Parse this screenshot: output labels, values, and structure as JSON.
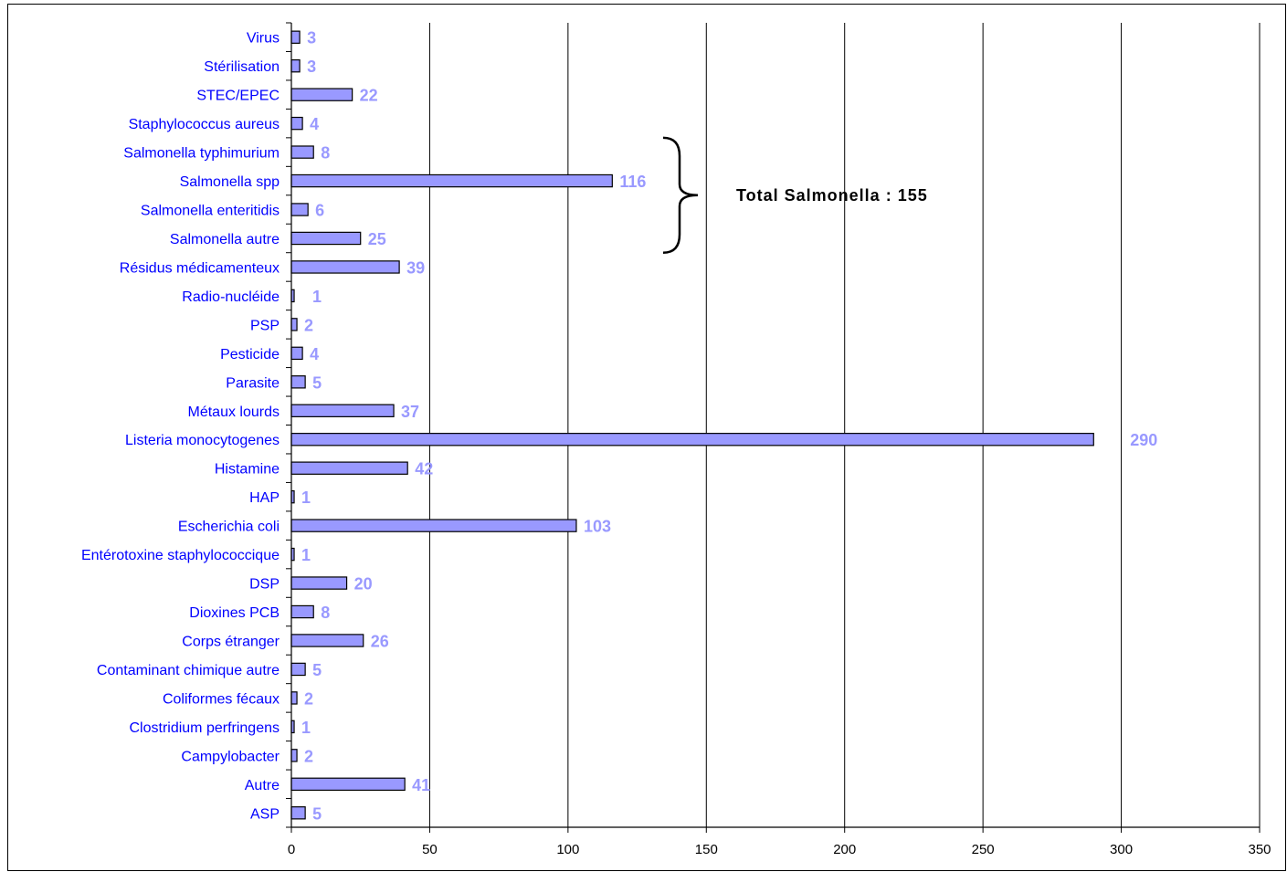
{
  "chart_data": {
    "type": "bar",
    "orientation": "horizontal",
    "categories": [
      "Virus",
      "Stérilisation",
      "STEC/EPEC",
      "Staphylococcus aureus",
      "Salmonella typhimurium",
      "Salmonella spp",
      "Salmonella enteritidis",
      "Salmonella autre",
      "Résidus médicamenteux",
      "Radio-nucléide",
      "PSP",
      "Pesticide",
      "Parasite",
      "Métaux lourds",
      "Listeria monocytogenes",
      "Histamine",
      "HAP",
      "Escherichia coli",
      "Entérotoxine staphylococcique",
      "DSP",
      "Dioxines PCB",
      "Corps étranger",
      "Contaminant chimique autre",
      "Coliformes fécaux",
      "Clostridium perfringens",
      "Campylobacter",
      "Autre",
      "ASP"
    ],
    "values": [
      3,
      3,
      22,
      4,
      8,
      116,
      6,
      25,
      39,
      1,
      2,
      4,
      5,
      37,
      290,
      42,
      1,
      103,
      1,
      20,
      8,
      26,
      5,
      2,
      1,
      2,
      41,
      5
    ],
    "xlim": [
      0,
      350
    ],
    "xticks": [
      0,
      50,
      100,
      150,
      200,
      250,
      300,
      350
    ],
    "grid": "vertical",
    "bar_color": "#9999ff",
    "label_color": "#9999ff",
    "category_color": "#0000ff",
    "annotation": {
      "text": "Total Salmonella : 155",
      "brace_from": "Salmonella typhimurium",
      "brace_to": "Salmonella autre"
    }
  }
}
